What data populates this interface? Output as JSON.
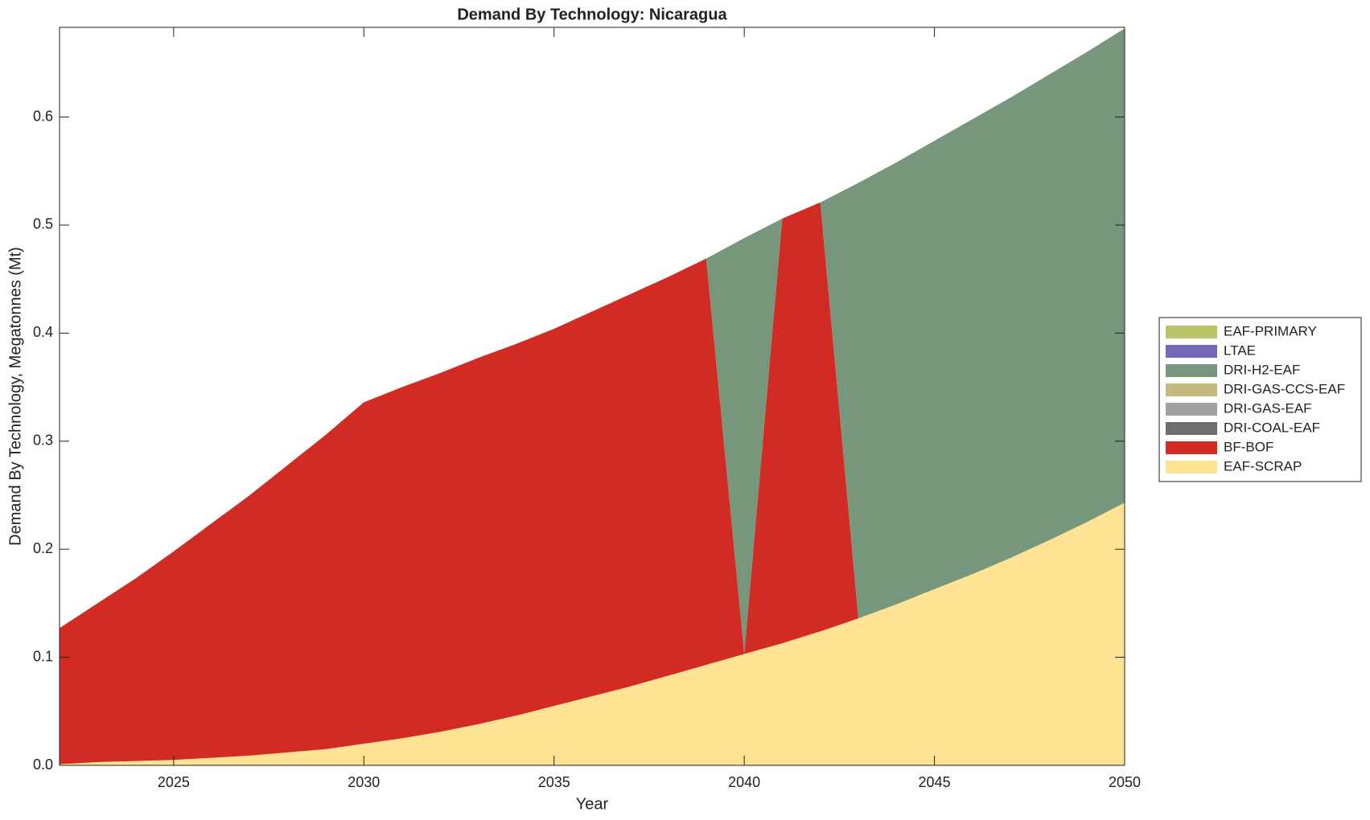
{
  "chart_data": {
    "type": "stacked-area",
    "title": "Demand By Technology: Nicaragua",
    "x_label": "Year",
    "y_label": "Demand By Technology, Megatonnes (Mt)",
    "x": [
      2022,
      2023,
      2024,
      2025,
      2026,
      2027,
      2028,
      2029,
      2030,
      2031,
      2032,
      2033,
      2034,
      2035,
      2036,
      2037,
      2038,
      2039,
      2040,
      2041,
      2042,
      2043,
      2044,
      2045,
      2046,
      2047,
      2048,
      2049,
      2050
    ],
    "series": [
      {
        "name": "EAF-SCRAP",
        "color": "#fde393",
        "values": [
          0.001,
          0.003,
          0.004,
          0.005,
          0.007,
          0.009,
          0.012,
          0.015,
          0.02,
          0.025,
          0.031,
          0.038,
          0.046,
          0.055,
          0.064,
          0.073,
          0.083,
          0.093,
          0.103,
          0.113,
          0.124,
          0.136,
          0.149,
          0.163,
          0.177,
          0.192,
          0.208,
          0.225,
          0.243
        ]
      },
      {
        "name": "BF-BOF",
        "color": "#d22b24",
        "values": [
          0.126,
          0.147,
          0.169,
          0.193,
          0.217,
          0.241,
          0.266,
          0.291,
          0.316,
          0.325,
          0.332,
          0.339,
          0.344,
          0.349,
          0.356,
          0.363,
          0.369,
          0.376,
          0,
          0.393,
          0.397,
          0,
          0,
          0,
          0,
          0,
          0,
          0,
          0
        ]
      },
      {
        "name": "DRI-COAL-EAF",
        "color": "#6e6e6e",
        "values": [
          0,
          0,
          0,
          0,
          0,
          0,
          0,
          0,
          0,
          0,
          0,
          0,
          0,
          0,
          0,
          0,
          0,
          0,
          0,
          0,
          0,
          0,
          0,
          0,
          0,
          0,
          0,
          0,
          0
        ]
      },
      {
        "name": "DRI-GAS-EAF",
        "color": "#a0a0a0",
        "values": [
          0,
          0,
          0,
          0,
          0,
          0,
          0,
          0,
          0,
          0,
          0,
          0,
          0,
          0,
          0,
          0,
          0,
          0,
          0,
          0,
          0,
          0,
          0,
          0,
          0,
          0,
          0,
          0,
          0
        ]
      },
      {
        "name": "DRI-GAS-CCS-EAF",
        "color": "#c4b97e",
        "values": [
          0,
          0,
          0,
          0,
          0,
          0,
          0,
          0,
          0,
          0,
          0,
          0,
          0,
          0,
          0,
          0,
          0,
          0,
          0,
          0,
          0,
          0,
          0,
          0,
          0,
          0,
          0,
          0,
          0
        ]
      },
      {
        "name": "DRI-H2-EAF",
        "color": "#76977c",
        "values": [
          0,
          0,
          0,
          0,
          0,
          0,
          0,
          0,
          0,
          0,
          0,
          0,
          0,
          0,
          0,
          0,
          0,
          0,
          0.385,
          0,
          0,
          0.403,
          0.409,
          0.415,
          0.421,
          0.426,
          0.431,
          0.435,
          0.439
        ]
      },
      {
        "name": "LTAE",
        "color": "#7468b9",
        "values": [
          0,
          0,
          0,
          0,
          0,
          0,
          0,
          0,
          0,
          0,
          0,
          0,
          0,
          0,
          0,
          0,
          0,
          0,
          0,
          0,
          0,
          0,
          0,
          0,
          0,
          0,
          0,
          0,
          0
        ]
      },
      {
        "name": "EAF-PRIMARY",
        "color": "#bcc46a",
        "values": [
          0,
          0,
          0,
          0,
          0,
          0,
          0,
          0,
          0,
          0,
          0,
          0,
          0,
          0,
          0,
          0,
          0,
          0,
          0,
          0,
          0,
          0,
          0,
          0,
          0,
          0,
          0,
          0,
          0
        ]
      }
    ],
    "xlim": [
      2022,
      2050
    ],
    "xticks": [
      2025,
      2030,
      2035,
      2040,
      2045,
      2050
    ],
    "ylim": [
      0,
      0.683
    ],
    "yticks": [
      {
        "value": 0,
        "label": "0.0"
      },
      0.1,
      0.2,
      0.3,
      0.4,
      0.5,
      0.6
    ],
    "legend": "right"
  }
}
